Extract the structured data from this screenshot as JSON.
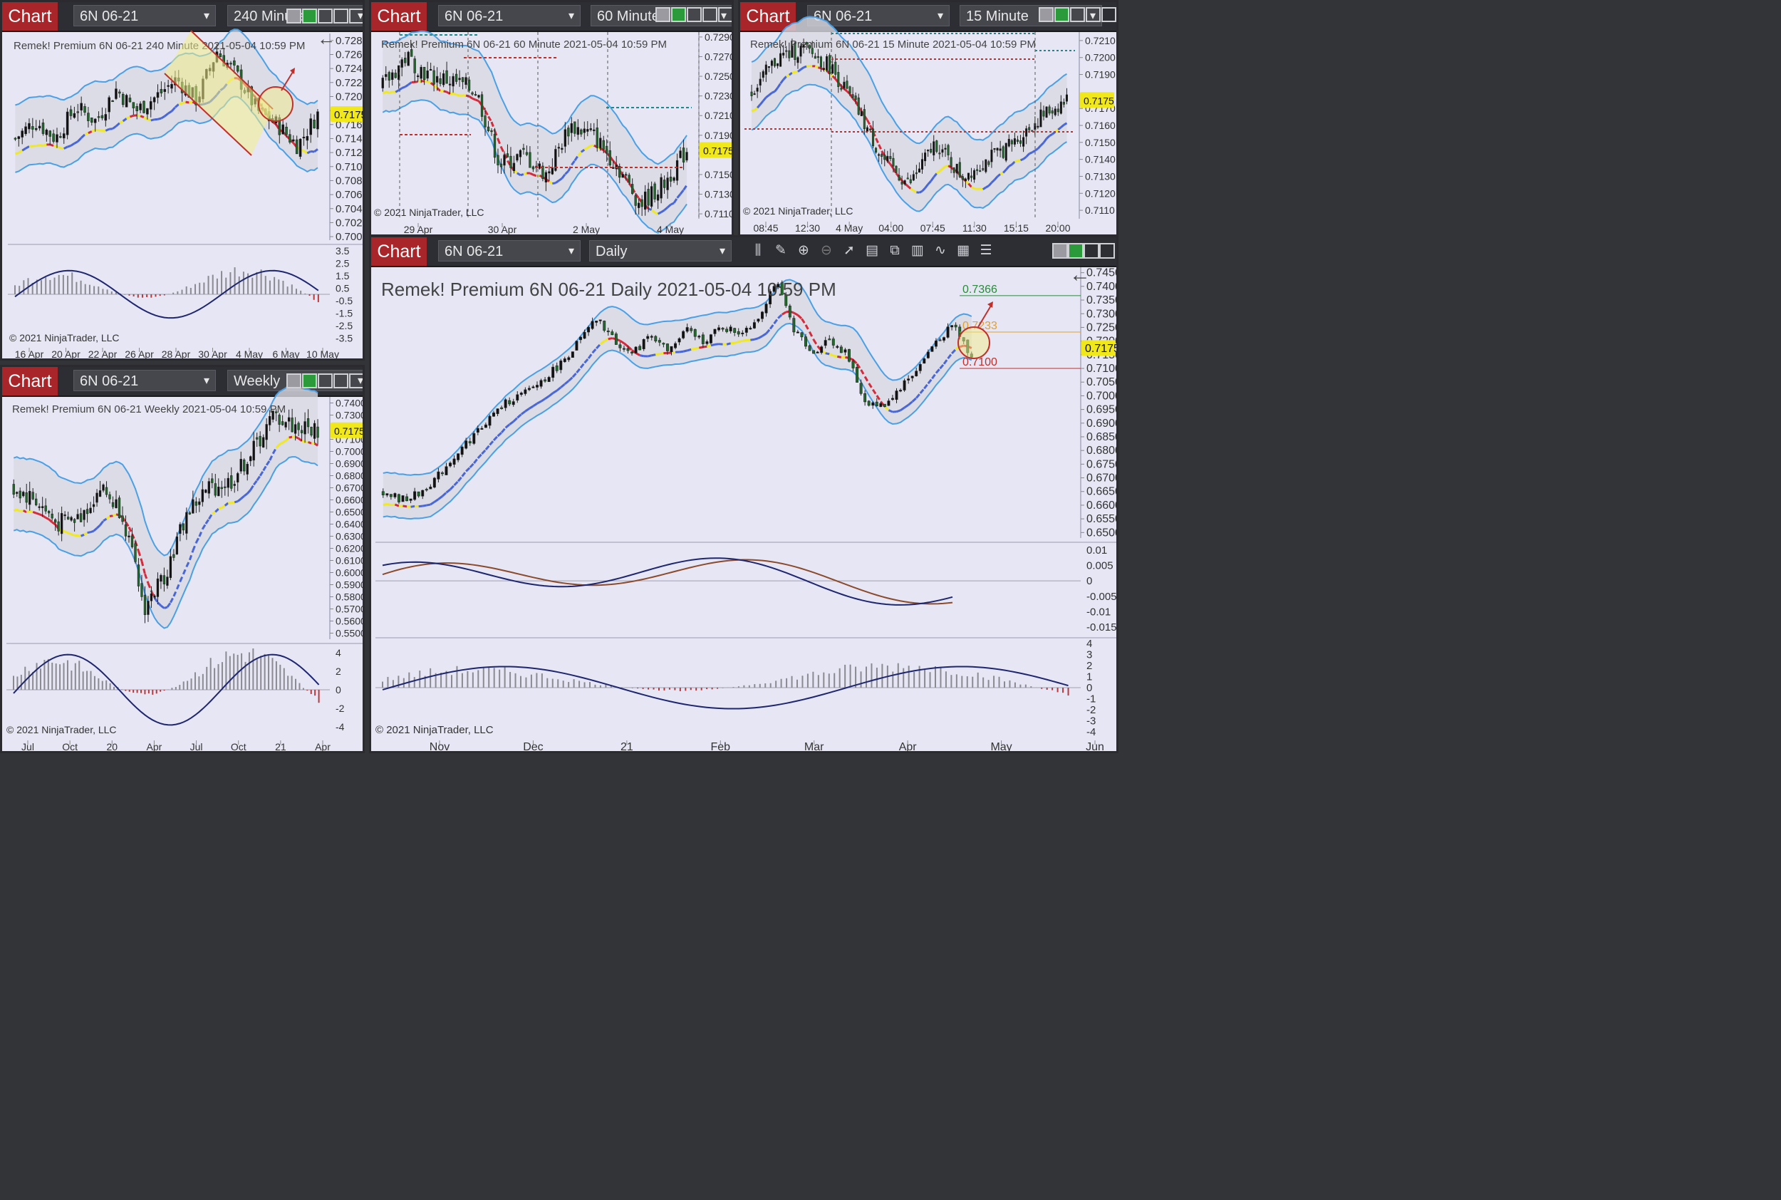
{
  "app": {
    "chart_label": "Chart",
    "copyright": "© 2021 NinjaTrader, LLC"
  },
  "panels": {
    "p240": {
      "instrument": "6N 06-21",
      "interval": "240 Minute",
      "caption": "Remek!  Premium  6N 06-21  240 Minute  2021-05-04 10:59 PM",
      "price": "0.7175",
      "yticks": [
        "0.7280",
        "0.7260",
        "0.7240",
        "0.7220",
        "0.7200",
        "0.7180",
        "0.7160",
        "0.7140",
        "0.7120",
        "0.7100",
        "0.7080",
        "0.7060",
        "0.7040",
        "0.7020",
        "0.7000"
      ],
      "xticks": [
        "16 Apr",
        "20 Apr",
        "22 Apr",
        "26 Apr",
        "28 Apr",
        "30 Apr",
        "4 May",
        "6 May",
        "10 May"
      ],
      "ind_ticks": [
        "3.5",
        "2.5",
        "1.5",
        "0.5",
        "-0.5",
        "-1.5",
        "-2.5",
        "-3.5"
      ]
    },
    "p60": {
      "instrument": "6N 06-21",
      "interval": "60 Minute",
      "caption": "Remek!  Premium  6N 06-21  60 Minute  2021-05-04 10:59 PM",
      "price": "0.7175",
      "yticks": [
        "0.7290",
        "0.7270",
        "0.7250",
        "0.7230",
        "0.7210",
        "0.7190",
        "0.7150",
        "0.7130",
        "0.7110"
      ],
      "xticks": [
        "29 Apr",
        "30 Apr",
        "2 May",
        "4 May"
      ]
    },
    "p15": {
      "instrument": "6N 06-21",
      "interval": "15 Minute",
      "caption": "Remek!  Premium  6N 06-21  15 Minute  2021-05-04 10:59 PM",
      "price": "0.7175",
      "yticks": [
        "0.7210",
        "0.7200",
        "0.7190",
        "0.7170",
        "0.7160",
        "0.7150",
        "0.7140",
        "0.7130",
        "0.7120",
        "0.7110"
      ],
      "xticks": [
        "08:45",
        "12:30",
        "4 May",
        "04:00",
        "07:45",
        "11:30",
        "15:15",
        "20:00"
      ]
    },
    "pweekly": {
      "instrument": "6N 06-21",
      "interval": "Weekly",
      "caption": "Remek!  Premium  6N 06-21  Weekly  2021-05-04 10:59 PM",
      "price": "0.7175",
      "yticks": [
        "0.7400",
        "0.7300",
        "0.7100",
        "0.7000",
        "0.6900",
        "0.6800",
        "0.6700",
        "0.6600",
        "0.6500",
        "0.6400",
        "0.6300",
        "0.6200",
        "0.6100",
        "0.6000",
        "0.5900",
        "0.5800",
        "0.5700",
        "0.5600",
        "0.5500"
      ],
      "xticks": [
        "Jul",
        "Oct",
        "20",
        "Apr",
        "Jul",
        "Oct",
        "21",
        "Apr"
      ],
      "ind_ticks": [
        "4",
        "2",
        "0",
        "-2",
        "-4"
      ]
    },
    "pdaily": {
      "instrument": "6N 06-21",
      "interval": "Daily",
      "caption": "Remek!  Premium  6N 06-21  Daily  2021-05-04 10:59 PM",
      "price": "0.7175",
      "level_high": "0.7366",
      "level_mid": "0.7233",
      "level_low": "0.7100",
      "yticks": [
        "0.7450",
        "0.7400",
        "0.7350",
        "0.7300",
        "0.7250",
        "0.7200",
        "0.7150",
        "0.7100",
        "0.7050",
        "0.7000",
        "0.6950",
        "0.6900",
        "0.6850",
        "0.6800",
        "0.6750",
        "0.6700",
        "0.6650",
        "0.6600",
        "0.6550",
        "0.6500"
      ],
      "xticks": [
        "Nov",
        "Dec",
        "21",
        "Feb",
        "Mar",
        "Apr",
        "May",
        "Jun"
      ],
      "macd_ticks": [
        "0.01",
        "0.005",
        "0",
        "-0.005",
        "-0.01",
        "-0.015"
      ],
      "hist_ticks": [
        "4",
        "3",
        "2",
        "1",
        "0",
        "-1",
        "-2",
        "-3",
        "-4"
      ]
    }
  },
  "colors": {
    "bg": "#e6e6f5",
    "band": "#4aa0e6",
    "up": "#111111",
    "down": "#1f6b2a",
    "dash_up": "#4866d8",
    "dash_down": "#d42a3a",
    "neutral": "#f0e822",
    "price_tag": "#f0e81a",
    "title_red": "#a8262a",
    "macd": "#1e2670",
    "signal": "#8b4a2a"
  },
  "chart_data": [
    {
      "type": "candlestick",
      "title": "Remek!  Premium  6N 06-21  Daily  2021-05-04 10:59 PM",
      "x_ticks": [
        "Nov",
        "Dec",
        "21",
        "Feb",
        "Mar",
        "Apr",
        "May",
        "Jun"
      ],
      "ylim": [
        0.648,
        0.747
      ],
      "levels": [
        0.7366,
        0.7233,
        0.71
      ],
      "last": 0.7175,
      "close_path": [
        0.665,
        0.662,
        0.664,
        0.67,
        0.678,
        0.685,
        0.692,
        0.698,
        0.701,
        0.706,
        0.712,
        0.72,
        0.728,
        0.72,
        0.715,
        0.723,
        0.716,
        0.724,
        0.72,
        0.725,
        0.723,
        0.728,
        0.742,
        0.725,
        0.715,
        0.721,
        0.715,
        0.698,
        0.696,
        0.703,
        0.71,
        0.72,
        0.726,
        0.714
      ]
    },
    {
      "type": "candlestick",
      "title": "Remek!  Premium  6N 06-21  240 Minute  2021-05-04 10:59 PM",
      "x_ticks": [
        "16 Apr",
        "20 Apr",
        "22 Apr",
        "26 Apr",
        "28 Apr",
        "30 Apr",
        "4 May",
        "6 May",
        "10 May"
      ],
      "ylim": [
        0.6995,
        0.729
      ],
      "last": 0.7175,
      "close_path": [
        0.714,
        0.7165,
        0.714,
        0.7185,
        0.7165,
        0.721,
        0.718,
        0.72,
        0.7225,
        0.7195,
        0.7265,
        0.723,
        0.718,
        0.716,
        0.713,
        0.7175
      ]
    },
    {
      "type": "candlestick",
      "title": "Remek!  Premium  6N 06-21  60 Minute  2021-05-04 10:59 PM",
      "x_ticks": [
        "29 Apr",
        "30 Apr",
        "2 May",
        "4 May"
      ],
      "ylim": [
        0.7105,
        0.7295
      ],
      "last": 0.7175,
      "close_path": [
        0.724,
        0.727,
        0.725,
        0.7245,
        0.7235,
        0.716,
        0.717,
        0.715,
        0.72,
        0.719,
        0.716,
        0.712,
        0.714,
        0.7175
      ]
    },
    {
      "type": "candlestick",
      "title": "Remek!  Premium  6N 06-21  15 Minute  2021-05-04 10:59 PM",
      "x_ticks": [
        "08:45",
        "12:30",
        "4 May",
        "04:00",
        "07:45",
        "11:30",
        "15:15",
        "20:00"
      ],
      "ylim": [
        0.7105,
        0.7215
      ],
      "last": 0.7175,
      "close_path": [
        0.718,
        0.72,
        0.7205,
        0.7195,
        0.717,
        0.714,
        0.7125,
        0.715,
        0.713,
        0.714,
        0.715,
        0.7165,
        0.7175
      ]
    },
    {
      "type": "candlestick",
      "title": "Remek!  Premium  6N 06-21  Weekly  2021-05-04 10:59 PM",
      "x_ticks": [
        "Jul",
        "Oct",
        "20",
        "Apr",
        "Jul",
        "Oct",
        "21",
        "Apr"
      ],
      "ylim": [
        0.545,
        0.745
      ],
      "last": 0.7175,
      "close_path": [
        0.67,
        0.66,
        0.64,
        0.645,
        0.67,
        0.65,
        0.57,
        0.6,
        0.65,
        0.67,
        0.675,
        0.7,
        0.73,
        0.72,
        0.7175
      ]
    }
  ]
}
